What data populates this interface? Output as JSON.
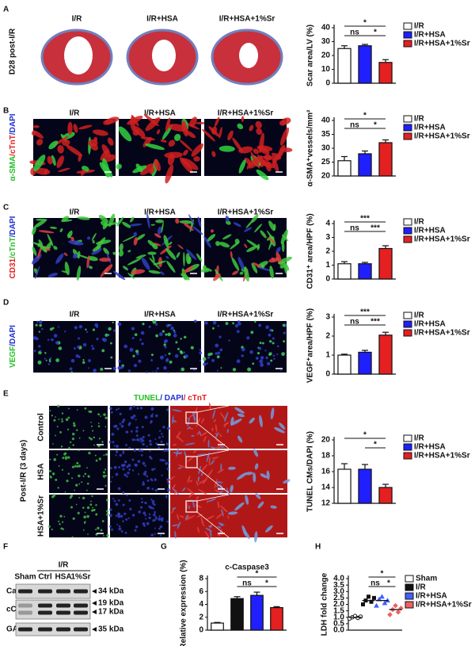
{
  "figure": {
    "panels": [
      "A",
      "B",
      "C",
      "D",
      "E",
      "F",
      "G",
      "H"
    ],
    "a": {
      "side_label": "D28 post-I/R",
      "groups": [
        "I/R",
        "I/R+HSA",
        "I/R+HSA+1%Sr"
      ]
    },
    "b": {
      "stain": [
        {
          "text": "α-SMA",
          "color": "#22c022"
        },
        {
          "text": "/cTnT",
          "color": "#e02020"
        },
        {
          "text": "/DAPI",
          "color": "#2030d0"
        }
      ],
      "groups": [
        "I/R",
        "I/R+HSA",
        "I/R+HSA+1%Sr"
      ]
    },
    "c": {
      "stain": [
        {
          "text": "CD31",
          "color": "#e02020"
        },
        {
          "text": "/cTnT",
          "color": "#22c022"
        },
        {
          "text": "/DAPI",
          "color": "#2030d0"
        }
      ],
      "groups": [
        "I/R",
        "I/R+HSA",
        "I/R+HSA+1%Sr"
      ]
    },
    "d": {
      "stain": [
        {
          "text": "VEGF",
          "color": "#22c022"
        },
        {
          "text": "/DAPI",
          "color": "#2030d0"
        }
      ],
      "groups": [
        "I/R",
        "I/R+HSA",
        "I/R+HSA+1%Sr"
      ]
    },
    "e": {
      "stain": [
        {
          "text": "TUNEL",
          "color": "#22c022"
        },
        {
          "text": "/ DAPI",
          "color": "#2030d0"
        },
        {
          "text": "/ cTnT",
          "color": "#e02020"
        }
      ],
      "side_label": "Post-I/R (3 days)",
      "rows": [
        "Control",
        "HSA",
        "HSA+1%Sr"
      ]
    },
    "f": {
      "group": "I/R",
      "lanes": [
        "Sham",
        "Ctrl",
        "HSA",
        "1%Sr"
      ],
      "rows": [
        "Cas.3",
        "cCas.3",
        "GAPDH"
      ],
      "sizes": [
        "34 kDa",
        "19 kDa",
        "17 kDa",
        "35 kDa"
      ]
    }
  },
  "chart_data": [
    {
      "type": "bar",
      "ylabel": "Scar area/LV (%)",
      "categories": [
        "I/R",
        "I/R+HSA",
        "I/R+HSA+1%Sr"
      ],
      "colors": [
        "#ffffff",
        "#1f1fff",
        "#e52020"
      ],
      "values": [
        25,
        27,
        15
      ],
      "errors": [
        2,
        1,
        2
      ],
      "ylim": [
        0,
        40
      ],
      "yticks": [
        0,
        10,
        20,
        30,
        40
      ],
      "significance": [
        {
          "label": "*",
          "from": 0,
          "to": 2
        },
        {
          "label": "ns",
          "from": 0,
          "to": 1
        },
        {
          "label": "*",
          "from": 1,
          "to": 2
        }
      ]
    },
    {
      "type": "bar",
      "ylabel": "α-SMA⁺vessels/mm²",
      "categories": [
        "I/R",
        "I/R+HSA",
        "I/R+HSA+1%Sr"
      ],
      "colors": [
        "#ffffff",
        "#1f1fff",
        "#e52020"
      ],
      "values": [
        25.5,
        28,
        32
      ],
      "errors": [
        1.5,
        1,
        1
      ],
      "ylim": [
        20,
        40
      ],
      "yticks": [
        20,
        25,
        30,
        35,
        40
      ],
      "significance": [
        {
          "label": "*",
          "from": 0,
          "to": 2
        },
        {
          "label": "ns",
          "from": 0,
          "to": 1
        },
        {
          "label": "*",
          "from": 1,
          "to": 2
        }
      ]
    },
    {
      "type": "bar",
      "ylabel": "CD31⁺ area/HPF (%)",
      "categories": [
        "I/R",
        "I/R+HSA",
        "I/R+HSA+1%Sr"
      ],
      "colors": [
        "#ffffff",
        "#1f1fff",
        "#e52020"
      ],
      "values": [
        1.1,
        1.1,
        2.2
      ],
      "errors": [
        0.15,
        0.1,
        0.2
      ],
      "ylim": [
        0,
        4
      ],
      "yticks": [
        0,
        1,
        2,
        3,
        4
      ],
      "significance": [
        {
          "label": "***",
          "from": 0,
          "to": 2
        },
        {
          "label": "ns",
          "from": 0,
          "to": 1
        },
        {
          "label": "***",
          "from": 1,
          "to": 2
        }
      ]
    },
    {
      "type": "bar",
      "ylabel": "VEGF⁺area/HPF (%)",
      "categories": [
        "I/R",
        "I/R+HSA",
        "I/R+HSA+1%Sr"
      ],
      "colors": [
        "#ffffff",
        "#1f1fff",
        "#e52020"
      ],
      "values": [
        1.0,
        1.15,
        2.05
      ],
      "errors": [
        0.05,
        0.1,
        0.15
      ],
      "ylim": [
        0,
        3
      ],
      "yticks": [
        0,
        1,
        2,
        3
      ],
      "significance": [
        {
          "label": "***",
          "from": 0,
          "to": 2
        },
        {
          "label": "ns",
          "from": 0,
          "to": 1
        },
        {
          "label": "***",
          "from": 1,
          "to": 2
        }
      ]
    },
    {
      "type": "bar",
      "ylabel": "TUNEL CMs/DAPI (%)",
      "categories": [
        "I/R",
        "I/R+HSA",
        "I/R+HSA+1%Sr"
      ],
      "colors": [
        "#ffffff",
        "#1f1fff",
        "#e52020"
      ],
      "values": [
        16.3,
        16.3,
        14.0
      ],
      "errors": [
        0.7,
        0.6,
        0.4
      ],
      "ylim": [
        12,
        20
      ],
      "yticks": [
        12,
        14,
        16,
        18,
        20
      ],
      "significance": [
        {
          "label": "*",
          "from": 0,
          "to": 2
        },
        {
          "label": "*",
          "from": 1,
          "to": 2
        }
      ]
    },
    {
      "type": "bar",
      "title": "c-Caspase3",
      "ylabel": "Relative expression (%)",
      "colors": [
        "#ffffff",
        "#111111",
        "#1f1fff",
        "#e52020"
      ],
      "values": [
        1.1,
        4.9,
        5.4,
        3.5
      ],
      "errors": [
        0.1,
        0.3,
        0.5,
        0.15
      ],
      "ylim": [
        0,
        8
      ],
      "yticks": [
        0,
        2,
        4,
        6,
        8
      ],
      "significance": [
        {
          "label": "*",
          "from": 1,
          "to": 3
        },
        {
          "label": "ns",
          "from": 1,
          "to": 2
        },
        {
          "label": "*",
          "from": 2,
          "to": 3
        }
      ]
    },
    {
      "type": "dot",
      "ylabel": "LDH fold change",
      "series": [
        {
          "name": "Sham",
          "color": "#ffffff",
          "values": [
            0.9,
            1.0,
            1.1,
            0.95,
            1.05
          ],
          "mean": 1.0
        },
        {
          "name": "I/R",
          "color": "#111111",
          "values": [
            2.0,
            2.3,
            2.6,
            2.2,
            2.5
          ],
          "mean": 2.3
        },
        {
          "name": "I/R+HSA",
          "color": "#4060ff",
          "values": [
            1.9,
            2.4,
            2.6,
            2.1,
            2.3
          ],
          "mean": 2.3
        },
        {
          "name": "I/R+HSA+1%Sr",
          "color": "#f06060",
          "values": [
            1.2,
            1.6,
            1.9,
            1.4,
            1.7
          ],
          "mean": 1.6
        }
      ],
      "ylim": [
        0,
        4
      ],
      "yticks": [
        {
          "value": 0,
          "label": "0.0"
        },
        0.5,
        {
          "value": 1,
          "label": "1.0"
        },
        1.5,
        {
          "value": 2,
          "label": "2.0"
        },
        2.5,
        {
          "value": 3,
          "label": "3.0"
        },
        3.5,
        {
          "value": 4,
          "label": "4.0"
        }
      ],
      "significance": [
        {
          "label": "*",
          "from": 1,
          "to": 3
        },
        {
          "label": "ns",
          "from": 1,
          "to": 2
        },
        {
          "label": "*",
          "from": 2,
          "to": 3
        }
      ]
    }
  ]
}
